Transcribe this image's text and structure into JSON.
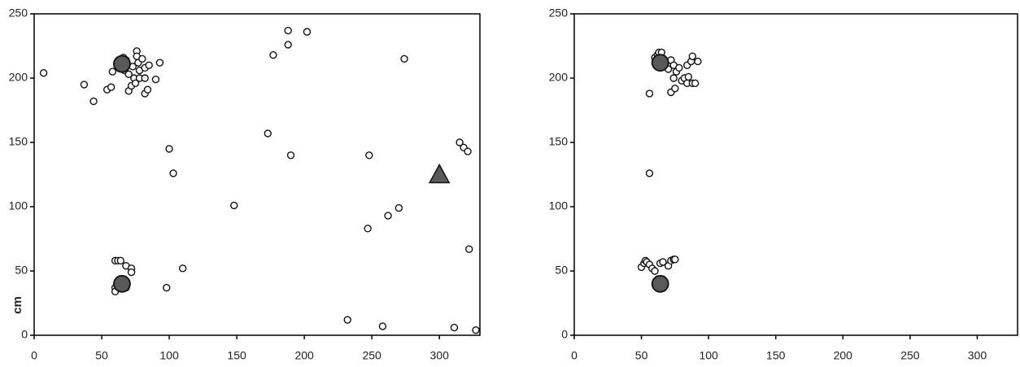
{
  "chart_data": [
    {
      "type": "scatter",
      "ylabel": "cm",
      "xlim": [
        0,
        330
      ],
      "ylim": [
        0,
        250
      ],
      "xticks": [
        0,
        50,
        100,
        150,
        200,
        250,
        300
      ],
      "yticks": [
        0,
        50,
        100,
        150,
        200,
        250
      ],
      "series": [
        {
          "marker": "circle",
          "size": "small",
          "color": "#ffffff",
          "x": [
            7,
            37,
            44,
            54,
            57,
            58,
            62,
            66,
            68,
            67,
            70,
            70,
            72,
            73,
            74,
            75,
            76,
            76,
            77,
            78,
            78,
            80,
            82,
            82,
            82,
            84,
            85,
            90,
            93,
            100,
            103,
            98,
            110,
            148,
            173,
            177,
            188,
            188,
            190,
            202,
            232,
            247,
            248,
            258,
            262,
            270,
            274,
            311,
            315,
            318,
            321,
            322,
            327,
            60,
            62,
            64,
            68,
            72,
            72,
            60,
            60,
            68,
            67
          ],
          "y": [
            204,
            195,
            182,
            191,
            193,
            205,
            212,
            216,
            214,
            206,
            203,
            190,
            194,
            209,
            200,
            196,
            221,
            217,
            212,
            206,
            200,
            215,
            188,
            208,
            200,
            191,
            210,
            199,
            212,
            145,
            126,
            37,
            52,
            101,
            157,
            218,
            237,
            226,
            140,
            236,
            12,
            83,
            140,
            7,
            93,
            99,
            215,
            6,
            150,
            146,
            143,
            67,
            4,
            58,
            58,
            58,
            54,
            52,
            49,
            37,
            34,
            37,
            38
          ]
        },
        {
          "marker": "circle",
          "size": "large",
          "color": "#595959",
          "x": [
            65,
            65
          ],
          "y": [
            211,
            40
          ]
        },
        {
          "marker": "triangle",
          "size": "large",
          "color": "#595959",
          "x": [
            300
          ],
          "y": [
            125
          ]
        }
      ]
    },
    {
      "type": "scatter",
      "xlim": [
        0,
        330
      ],
      "ylim": [
        0,
        250
      ],
      "xticks": [
        0,
        50,
        100,
        150,
        200,
        250,
        300
      ],
      "yticks": [
        0,
        50,
        100,
        150,
        200,
        250
      ],
      "series": [
        {
          "marker": "circle",
          "size": "small",
          "color": "#ffffff",
          "x": [
            60,
            62,
            63,
            65,
            66,
            68,
            70,
            72,
            74,
            74,
            76,
            78,
            80,
            82,
            84,
            84,
            85,
            87,
            88,
            88,
            90,
            92,
            72,
            75,
            56,
            56,
            50,
            52,
            53,
            54,
            56,
            58,
            60,
            64,
            66,
            70,
            72,
            74,
            75
          ],
          "y": [
            216,
            218,
            220,
            220,
            214,
            212,
            207,
            214,
            200,
            210,
            205,
            208,
            198,
            200,
            210,
            196,
            201,
            213,
            196,
            217,
            196,
            213,
            189,
            192,
            188,
            126,
            53,
            56,
            58,
            57,
            55,
            52,
            50,
            56,
            57,
            54,
            58,
            59,
            59
          ]
        },
        {
          "marker": "circle",
          "size": "large",
          "color": "#595959",
          "x": [
            64,
            64
          ],
          "y": [
            212,
            40
          ]
        }
      ]
    }
  ]
}
